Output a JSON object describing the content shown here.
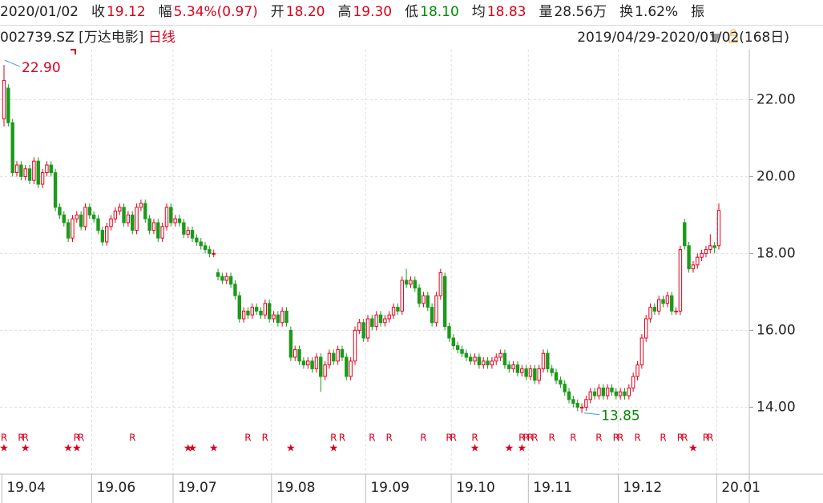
{
  "header": {
    "date": "2020/01/02",
    "items": [
      {
        "label": "收",
        "value": "19.12",
        "tone": "up"
      },
      {
        "label": "幅",
        "value": "5.34%(0.97)",
        "tone": "up"
      },
      {
        "label": "开",
        "value": "18.20",
        "tone": "up"
      },
      {
        "label": "高",
        "value": "19.30",
        "tone": "up"
      },
      {
        "label": "低",
        "value": "18.10",
        "tone": "down"
      },
      {
        "label": "均",
        "value": "18.83",
        "tone": "up"
      },
      {
        "label": "量",
        "value": "28.56万",
        "tone": "flat"
      },
      {
        "label": "换",
        "value": "1.62%",
        "tone": "flat"
      },
      {
        "label": "振"
      }
    ]
  },
  "subheader": {
    "code": "002739.SZ [万达电影]",
    "period": "日线",
    "range": "2019/04/29-2020/01/02(168日)"
  },
  "chart_data": {
    "type": "candlestick",
    "up_color": "#e3001b",
    "down_color": "#1b9a1b",
    "grid": true,
    "max_label": "22.90",
    "min_label": "13.85",
    "ylim": [
      12.3,
      23.8
    ],
    "yticks": [
      {
        "value": 14,
        "label": "14.00"
      },
      {
        "value": 16,
        "label": "16.00"
      },
      {
        "value": 18,
        "label": "18.00"
      },
      {
        "value": 20,
        "label": "20.00"
      },
      {
        "value": 22,
        "label": "22.00"
      }
    ],
    "xticks": [
      {
        "value": 0,
        "label": "19.04"
      },
      {
        "value": 21,
        "label": "19.06"
      },
      {
        "value": 40,
        "label": "19.07"
      },
      {
        "value": 63,
        "label": "19.08"
      },
      {
        "value": 85,
        "label": "19.09"
      },
      {
        "value": 105,
        "label": "19.10"
      },
      {
        "value": 123,
        "label": "19.11"
      },
      {
        "value": 144,
        "label": "19.12"
      },
      {
        "value": 167,
        "label": "20.01"
      }
    ],
    "r_label": "R",
    "r_days": [
      0,
      4,
      5,
      17,
      18,
      30,
      57,
      61,
      77,
      79,
      86,
      90,
      98,
      104,
      105,
      110,
      121,
      122,
      123,
      124,
      128,
      133,
      139,
      143,
      144,
      148,
      154,
      158,
      159,
      164,
      165
    ],
    "star_label": "★",
    "star_days": [
      0,
      5,
      15,
      17,
      43,
      44,
      49,
      67,
      77,
      110,
      118,
      121,
      161
    ],
    "open": [
      21.5,
      22.3,
      21.4,
      20.1,
      20.3,
      20.0,
      20.2,
      19.9,
      20.4,
      19.8,
      20.1,
      20.3,
      20.1,
      19.2,
      19.0,
      18.8,
      18.4,
      18.9,
      19.0,
      18.7,
      19.2,
      19.0,
      18.9,
      18.6,
      18.3,
      18.7,
      18.9,
      19.1,
      19.2,
      18.8,
      19.0,
      18.6,
      19.2,
      19.3,
      18.9,
      18.6,
      18.8,
      18.4,
      18.7,
      19.2,
      18.8,
      18.9,
      18.8,
      18.5,
      18.6,
      18.4,
      18.3,
      18.2,
      18.1,
      18.0,
      17.5,
      17.4,
      17.3,
      17.4,
      17.2,
      16.9,
      16.3,
      16.5,
      16.4,
      16.6,
      16.5,
      16.4,
      16.7,
      16.3,
      16.4,
      16.2,
      16.5,
      16.0,
      15.3,
      15.5,
      15.2,
      15.1,
      15.2,
      15.0,
      15.3,
      14.8,
      15.1,
      15.4,
      15.2,
      15.5,
      15.3,
      14.8,
      15.2,
      16.0,
      16.2,
      15.8,
      16.3,
      16.1,
      16.4,
      16.2,
      16.3,
      16.4,
      16.6,
      16.5,
      17.3,
      17.2,
      17.3,
      17.1,
      16.7,
      16.9,
      16.6,
      16.2,
      16.9,
      17.4,
      16.1,
      15.8,
      15.6,
      15.5,
      15.4,
      15.3,
      15.2,
      15.3,
      15.1,
      15.2,
      15.1,
      15.2,
      15.3,
      15.4,
      15.1,
      15.0,
      15.1,
      14.9,
      15.0,
      14.8,
      15.0,
      14.7,
      15.0,
      15.4,
      15.0,
      14.9,
      14.7,
      14.6,
      14.4,
      14.2,
      14.1,
      14.0,
      14.0,
      14.2,
      14.4,
      14.3,
      14.5,
      14.3,
      14.5,
      14.4,
      14.3,
      14.4,
      14.3,
      14.5,
      14.8,
      15.1,
      15.8,
      16.3,
      16.6,
      16.5,
      16.8,
      16.7,
      16.9,
      16.5,
      16.5,
      18.8,
      18.2,
      17.6,
      17.7,
      17.9,
      18.0,
      18.1,
      18.2,
      18.2
    ],
    "high": [
      22.9,
      22.4,
      21.5,
      20.4,
      20.4,
      20.3,
      20.3,
      20.5,
      20.5,
      20.2,
      20.4,
      20.4,
      20.2,
      19.3,
      19.1,
      18.9,
      19.0,
      19.1,
      19.1,
      19.3,
      19.3,
      19.1,
      19.0,
      18.7,
      18.8,
      19.0,
      19.2,
      19.3,
      19.3,
      19.1,
      19.1,
      19.3,
      19.4,
      19.4,
      19.0,
      18.9,
      18.9,
      18.8,
      19.3,
      19.3,
      19.0,
      19.0,
      18.9,
      18.7,
      18.7,
      18.5,
      18.4,
      18.3,
      18.2,
      18.1,
      17.6,
      17.5,
      17.5,
      17.5,
      17.3,
      17.0,
      16.6,
      16.6,
      16.7,
      16.7,
      16.6,
      16.8,
      16.8,
      16.5,
      16.5,
      16.6,
      16.6,
      16.1,
      15.6,
      15.6,
      15.3,
      15.3,
      15.3,
      15.4,
      15.4,
      15.2,
      15.5,
      15.5,
      15.6,
      15.6,
      15.4,
      15.3,
      16.1,
      16.3,
      16.3,
      16.4,
      16.4,
      16.5,
      16.5,
      16.4,
      16.5,
      16.7,
      16.7,
      17.4,
      17.6,
      17.4,
      17.4,
      17.2,
      17.0,
      17.0,
      16.7,
      17.0,
      17.6,
      17.5,
      16.2,
      15.9,
      15.7,
      15.6,
      15.5,
      15.4,
      15.4,
      15.4,
      15.3,
      15.3,
      15.3,
      15.4,
      15.5,
      15.5,
      15.2,
      15.2,
      15.2,
      15.1,
      15.1,
      15.1,
      15.1,
      15.1,
      15.5,
      15.5,
      15.1,
      15.0,
      14.8,
      14.7,
      14.5,
      14.3,
      14.2,
      14.1,
      14.3,
      14.5,
      14.5,
      14.6,
      14.6,
      14.6,
      14.6,
      14.5,
      14.5,
      14.5,
      14.6,
      14.9,
      15.2,
      15.9,
      16.4,
      16.7,
      16.7,
      16.9,
      16.9,
      17.0,
      17.0,
      16.6,
      18.2,
      18.9,
      18.3,
      17.8,
      18.0,
      18.1,
      18.2,
      18.5,
      18.3,
      19.3
    ],
    "low": [
      21.3,
      21.3,
      20.0,
      20.0,
      19.9,
      19.9,
      19.8,
      19.8,
      19.7,
      19.7,
      20.0,
      20.0,
      19.1,
      18.9,
      18.7,
      18.3,
      18.3,
      18.8,
      18.6,
      18.6,
      18.9,
      18.8,
      18.5,
      18.2,
      18.2,
      18.6,
      18.8,
      19.0,
      18.7,
      18.7,
      18.5,
      18.5,
      19.1,
      18.8,
      18.5,
      18.5,
      18.3,
      18.3,
      18.6,
      18.7,
      18.7,
      18.7,
      18.4,
      18.4,
      18.3,
      18.2,
      18.1,
      18.0,
      17.9,
      17.9,
      17.3,
      17.2,
      17.2,
      17.1,
      16.8,
      16.2,
      16.2,
      16.3,
      16.3,
      16.4,
      16.3,
      16.3,
      16.2,
      16.2,
      16.1,
      16.1,
      16.1,
      15.2,
      15.2,
      15.1,
      15.0,
      15.0,
      14.9,
      14.9,
      14.4,
      14.7,
      15.0,
      15.1,
      15.1,
      15.2,
      14.7,
      14.7,
      15.1,
      15.9,
      15.7,
      15.7,
      16.0,
      16.0,
      16.1,
      16.1,
      16.2,
      16.3,
      16.4,
      16.4,
      17.1,
      17.1,
      17.0,
      16.6,
      16.6,
      16.5,
      16.1,
      16.1,
      16.8,
      16.0,
      15.7,
      15.5,
      15.4,
      15.3,
      15.2,
      15.1,
      15.1,
      15.0,
      15.0,
      15.0,
      15.0,
      15.1,
      15.2,
      15.0,
      14.9,
      14.9,
      14.8,
      14.8,
      14.7,
      14.7,
      14.6,
      14.6,
      14.9,
      14.9,
      14.8,
      14.6,
      14.5,
      14.3,
      14.1,
      14.0,
      13.9,
      13.85,
      13.9,
      14.1,
      14.2,
      14.2,
      14.2,
      14.2,
      14.3,
      14.2,
      14.2,
      14.2,
      14.2,
      14.4,
      14.7,
      15.0,
      15.7,
      16.2,
      16.4,
      16.4,
      16.6,
      16.6,
      16.4,
      16.4,
      16.4,
      18.1,
      17.5,
      17.5,
      17.6,
      17.8,
      17.9,
      18.0,
      18.0,
      18.1
    ],
    "close": [
      22.5,
      21.4,
      20.1,
      20.3,
      20.0,
      20.2,
      19.9,
      20.4,
      19.8,
      20.1,
      20.3,
      20.1,
      19.2,
      19.0,
      18.8,
      18.4,
      18.9,
      19.0,
      18.7,
      19.2,
      19.0,
      18.9,
      18.6,
      18.3,
      18.7,
      18.9,
      19.1,
      19.2,
      18.8,
      19.0,
      18.6,
      19.2,
      19.3,
      18.9,
      18.6,
      18.8,
      18.4,
      18.7,
      19.2,
      18.8,
      18.9,
      18.8,
      18.5,
      18.6,
      18.4,
      18.3,
      18.2,
      18.1,
      18.0,
      18.0,
      17.4,
      17.3,
      17.4,
      17.2,
      16.9,
      16.3,
      16.5,
      16.4,
      16.6,
      16.5,
      16.4,
      16.7,
      16.3,
      16.4,
      16.2,
      16.5,
      16.2,
      15.3,
      15.5,
      15.2,
      15.1,
      15.2,
      15.0,
      15.3,
      14.8,
      15.1,
      15.4,
      15.2,
      15.5,
      15.3,
      14.8,
      15.2,
      16.0,
      16.2,
      15.8,
      16.3,
      16.1,
      16.4,
      16.2,
      16.3,
      16.4,
      16.6,
      16.5,
      17.3,
      17.2,
      17.3,
      17.1,
      16.7,
      16.9,
      16.6,
      16.2,
      16.9,
      17.5,
      16.1,
      15.8,
      15.6,
      15.5,
      15.4,
      15.3,
      15.2,
      15.3,
      15.1,
      15.2,
      15.1,
      15.2,
      15.3,
      15.4,
      15.1,
      15.0,
      15.1,
      14.9,
      15.0,
      14.8,
      15.0,
      14.7,
      15.0,
      15.4,
      15.0,
      14.9,
      14.7,
      14.6,
      14.4,
      14.2,
      14.1,
      14.0,
      14.0,
      14.2,
      14.4,
      14.3,
      14.5,
      14.3,
      14.5,
      14.4,
      14.3,
      14.4,
      14.3,
      14.5,
      14.8,
      15.1,
      15.8,
      16.3,
      16.6,
      16.5,
      16.8,
      16.7,
      16.9,
      16.5,
      16.5,
      18.1,
      18.2,
      17.6,
      17.7,
      17.9,
      18.0,
      18.1,
      18.2,
      18.15,
      19.12
    ]
  }
}
